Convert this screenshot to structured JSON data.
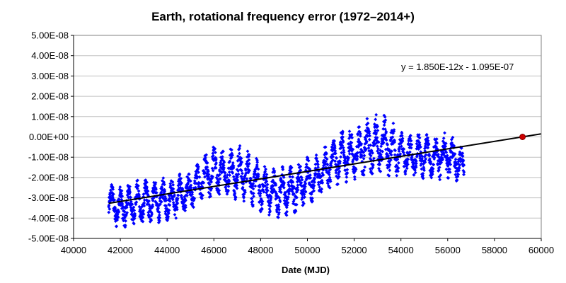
{
  "chart_data": {
    "type": "scatter",
    "title": "Earth, rotational frequency error (1972–2014+)",
    "xlabel": "Date (MJD)",
    "ylabel": "",
    "xlim": [
      40000,
      60000
    ],
    "ylim": [
      -5e-08,
      5e-08
    ],
    "x_ticks": [
      40000,
      42000,
      44000,
      46000,
      48000,
      50000,
      52000,
      54000,
      56000,
      58000,
      60000
    ],
    "x_tick_labels": [
      "40000",
      "42000",
      "44000",
      "46000",
      "48000",
      "50000",
      "52000",
      "54000",
      "56000",
      "58000",
      "60000"
    ],
    "y_ticks": [
      5e-08,
      4e-08,
      3e-08,
      2e-08,
      1e-08,
      0,
      -1e-08,
      -2e-08,
      -3e-08,
      -4e-08,
      -5e-08
    ],
    "y_tick_labels": [
      "5.00E-08",
      "4.00E-08",
      "3.00E-08",
      "2.00E-08",
      "1.00E-08",
      "0.00E+00",
      "-1.00E-08",
      "-2.00E-08",
      "-3.00E-08",
      "-4.00E-08",
      "-5.00E-08"
    ],
    "grid": "horizontal",
    "annotation": "y = 1.850E-12x - 1.095E-07",
    "colors": {
      "points": "#0000ff",
      "trend": "#000000",
      "marker": "#cc0000",
      "grid": "#c0c0c0",
      "plot_border": "#808080"
    },
    "series": [
      {
        "kind": "scatter",
        "x_range": [
          41500,
          56700
        ],
        "envelope": [
          {
            "x": 41500,
            "low": -4.2e-08,
            "high": -2.2e-08
          },
          {
            "x": 42000,
            "low": -4.7e-08,
            "high": -2.3e-08
          },
          {
            "x": 42500,
            "low": -4.4e-08,
            "high": -2.2e-08
          },
          {
            "x": 43000,
            "low": -4.5e-08,
            "high": -2e-08
          },
          {
            "x": 43500,
            "low": -4.3e-08,
            "high": -2e-08
          },
          {
            "x": 44000,
            "low": -4.2e-08,
            "high": -2e-08
          },
          {
            "x": 44500,
            "low": -4e-08,
            "high": -1.8e-08
          },
          {
            "x": 45000,
            "low": -3.7e-08,
            "high": -1.6e-08
          },
          {
            "x": 45500,
            "low": -3.2e-08,
            "high": -1e-08
          },
          {
            "x": 46000,
            "low": -3.1e-08,
            "high": -3e-09
          },
          {
            "x": 46500,
            "low": -3e-08,
            "high": -5e-09
          },
          {
            "x": 47000,
            "low": -3.1e-08,
            "high": -3e-09
          },
          {
            "x": 47500,
            "low": -3.3e-08,
            "high": -6e-09
          },
          {
            "x": 48000,
            "low": -3.8e-08,
            "high": -1.2e-08
          },
          {
            "x": 48500,
            "low": -4e-08,
            "high": -1.5e-08
          },
          {
            "x": 49000,
            "low": -4e-08,
            "high": -1.4e-08
          },
          {
            "x": 49500,
            "low": -3.8e-08,
            "high": -1.3e-08
          },
          {
            "x": 50000,
            "low": -3.4e-08,
            "high": -8e-09
          },
          {
            "x": 50500,
            "low": -3e-08,
            "high": -9e-09
          },
          {
            "x": 51000,
            "low": -2.6e-08,
            "high": 0.0
          },
          {
            "x": 51500,
            "low": -2.3e-08,
            "high": 4e-09
          },
          {
            "x": 52000,
            "low": -2.1e-08,
            "high": 5e-09
          },
          {
            "x": 52500,
            "low": -2e-08,
            "high": 9e-09
          },
          {
            "x": 53000,
            "low": -2e-08,
            "high": 1.2e-08
          },
          {
            "x": 53500,
            "low": -2e-08,
            "high": 1.1e-08
          },
          {
            "x": 54000,
            "low": -2e-08,
            "high": 3e-09
          },
          {
            "x": 54500,
            "low": -2e-08,
            "high": 1e-09
          },
          {
            "x": 55000,
            "low": -2.1e-08,
            "high": 3e-09
          },
          {
            "x": 55500,
            "low": -2.1e-08,
            "high": 1e-09
          },
          {
            "x": 56000,
            "low": -2.2e-08,
            "high": 3e-09
          },
          {
            "x": 56500,
            "low": -2.2e-08,
            "high": -4e-09
          },
          {
            "x": 56700,
            "low": -2.2e-08,
            "high": -6e-09
          }
        ]
      },
      {
        "kind": "trendline",
        "slope": 1.85e-12,
        "intercept": -1.095e-07,
        "x_start": 41500,
        "x_end": 60000
      },
      {
        "kind": "point",
        "x": 59200,
        "y": 0.0
      }
    ]
  }
}
